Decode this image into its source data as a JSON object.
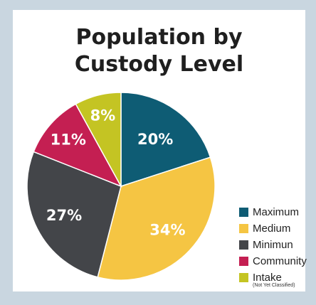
{
  "chart_data": {
    "type": "pie",
    "title_lines": [
      "Population by",
      "Custody Level"
    ],
    "slices": [
      {
        "label": "Maximum",
        "value": 20,
        "value_label": "20%",
        "color": "#0e5c74"
      },
      {
        "label": "Medium",
        "value": 34,
        "value_label": "34%",
        "color": "#f5c543"
      },
      {
        "label": "Minimun",
        "value": 27,
        "value_label": "27%",
        "color": "#434549"
      },
      {
        "label": "Community",
        "value": 11,
        "value_label": "11%",
        "color": "#c41f52"
      },
      {
        "label": "Intake",
        "sublabel": "(Not Yet Classified)",
        "value": 8,
        "value_label": "8%",
        "color": "#c4c423"
      }
    ],
    "legend_position": "right"
  }
}
